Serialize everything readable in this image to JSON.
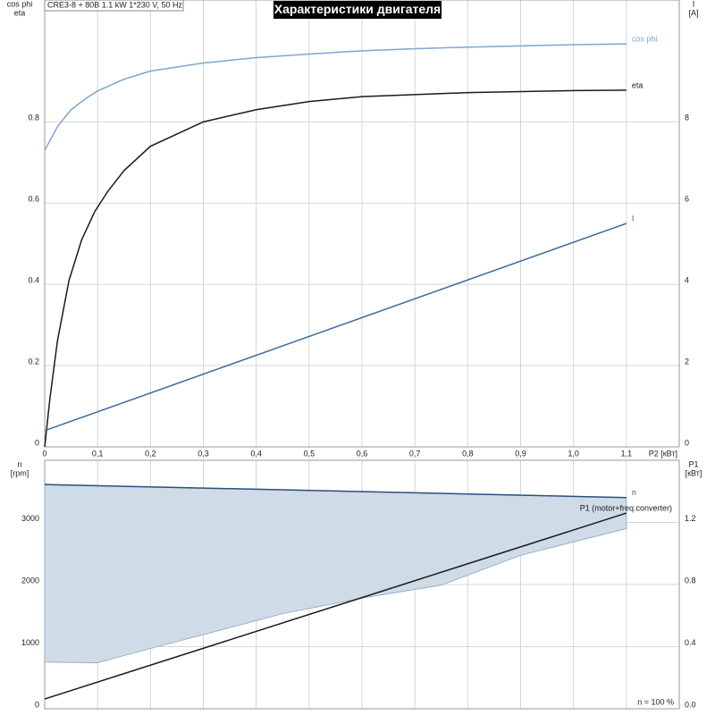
{
  "chart_data": [
    {
      "type": "line",
      "title": "Характеристики двигателя",
      "subtitle": "CRE3-8 + 80B   1.1 kW   1*230 V, 50 Hz",
      "ylabel": [
        "cos phi",
        "eta"
      ],
      "y2label": [
        "I",
        "[A]"
      ],
      "xlabel": "P2 [кВт]",
      "xlim": [
        0,
        1.2
      ],
      "ylim": [
        0,
        1.1
      ],
      "y2lim": [
        0,
        11
      ],
      "xticks": [
        0,
        {
          "value": 0.1,
          "label": "0,1"
        },
        {
          "value": 0.2,
          "label": "0,2"
        },
        {
          "value": 0.3,
          "label": "0,3"
        },
        {
          "value": 0.4,
          "label": "0,4"
        },
        {
          "value": 0.5,
          "label": "0,5"
        },
        {
          "value": 0.6,
          "label": "0,6"
        },
        {
          "value": 0.7,
          "label": "0,7"
        },
        {
          "value": 0.8,
          "label": "0,8"
        },
        {
          "value": 0.9,
          "label": "0,9"
        },
        {
          "value": 1.0,
          "label": "1,0"
        },
        {
          "value": 1.1,
          "label": "1,1"
        }
      ],
      "yticks": [
        0,
        0.2,
        0.4,
        0.6,
        0.8
      ],
      "y2ticks": [
        0,
        2,
        4,
        6,
        8
      ],
      "grid": true,
      "series": [
        {
          "name": "cos phi",
          "color": "#7ea6cc",
          "x": [
            0,
            0.025,
            0.05,
            0.075,
            0.1,
            0.15,
            0.2,
            0.3,
            0.4,
            0.5,
            0.6,
            0.7,
            0.8,
            0.9,
            1.0,
            1.1
          ],
          "values": [
            0.73,
            0.79,
            0.83,
            0.855,
            0.876,
            0.905,
            0.925,
            0.945,
            0.958,
            0.967,
            0.975,
            0.98,
            0.984,
            0.987,
            0.99,
            0.992
          ]
        },
        {
          "name": "eta",
          "color": "#1a1a1a",
          "x": [
            0,
            0.01,
            0.024,
            0.046,
            0.07,
            0.095,
            0.12,
            0.15,
            0.2,
            0.3,
            0.4,
            0.5,
            0.6,
            0.8,
            1.0,
            1.1
          ],
          "values": [
            0,
            0.12,
            0.26,
            0.41,
            0.51,
            0.58,
            0.63,
            0.68,
            0.74,
            0.8,
            0.83,
            0.85,
            0.862,
            0.872,
            0.877,
            0.878
          ]
        },
        {
          "name": "I",
          "color": "#3b6d9e",
          "axis": "y2",
          "x": [
            0,
            1.1
          ],
          "values": [
            0.4,
            5.5
          ]
        }
      ]
    },
    {
      "type": "line",
      "ylabel": [
        "n",
        "[rpm]"
      ],
      "y2label": [
        "P1",
        "[кВт]"
      ],
      "annotation": "n = 100 %",
      "xlim": [
        0,
        1.2
      ],
      "ylim": [
        0,
        4000
      ],
      "y2lim": [
        0,
        1.6
      ],
      "xgrid": [
        0.1,
        0.2,
        0.3,
        0.4,
        0.5,
        0.6,
        0.7,
        0.8,
        0.9,
        1.0,
        1.1
      ],
      "yticks": [
        0,
        1000,
        2000,
        3000
      ],
      "y2ticks": [
        {
          "value": 0,
          "label": "0.0"
        },
        0.4,
        0.8,
        1.2
      ],
      "grid": true,
      "band": {
        "color": "#cfdbe6",
        "x": [
          0,
          0.1,
          0.2,
          0.45,
          0.6,
          0.75,
          0.9,
          1.1
        ],
        "high": [
          3610,
          3591,
          3572,
          3524,
          3495,
          3467,
          3438,
          3400
        ],
        "low": [
          750,
          740,
          970,
          1530,
          1780,
          1990,
          2470,
          2900
        ]
      },
      "series": [
        {
          "name": "n",
          "color": "#2b4f7a",
          "x": [
            0,
            1.1
          ],
          "values": [
            3610,
            3400
          ]
        },
        {
          "name": "P1 (motor+freq.converter)",
          "color": "#1a1a1a",
          "axis": "y2",
          "x": [
            0,
            1.1
          ],
          "values": [
            0.063,
            1.26
          ]
        }
      ]
    }
  ]
}
